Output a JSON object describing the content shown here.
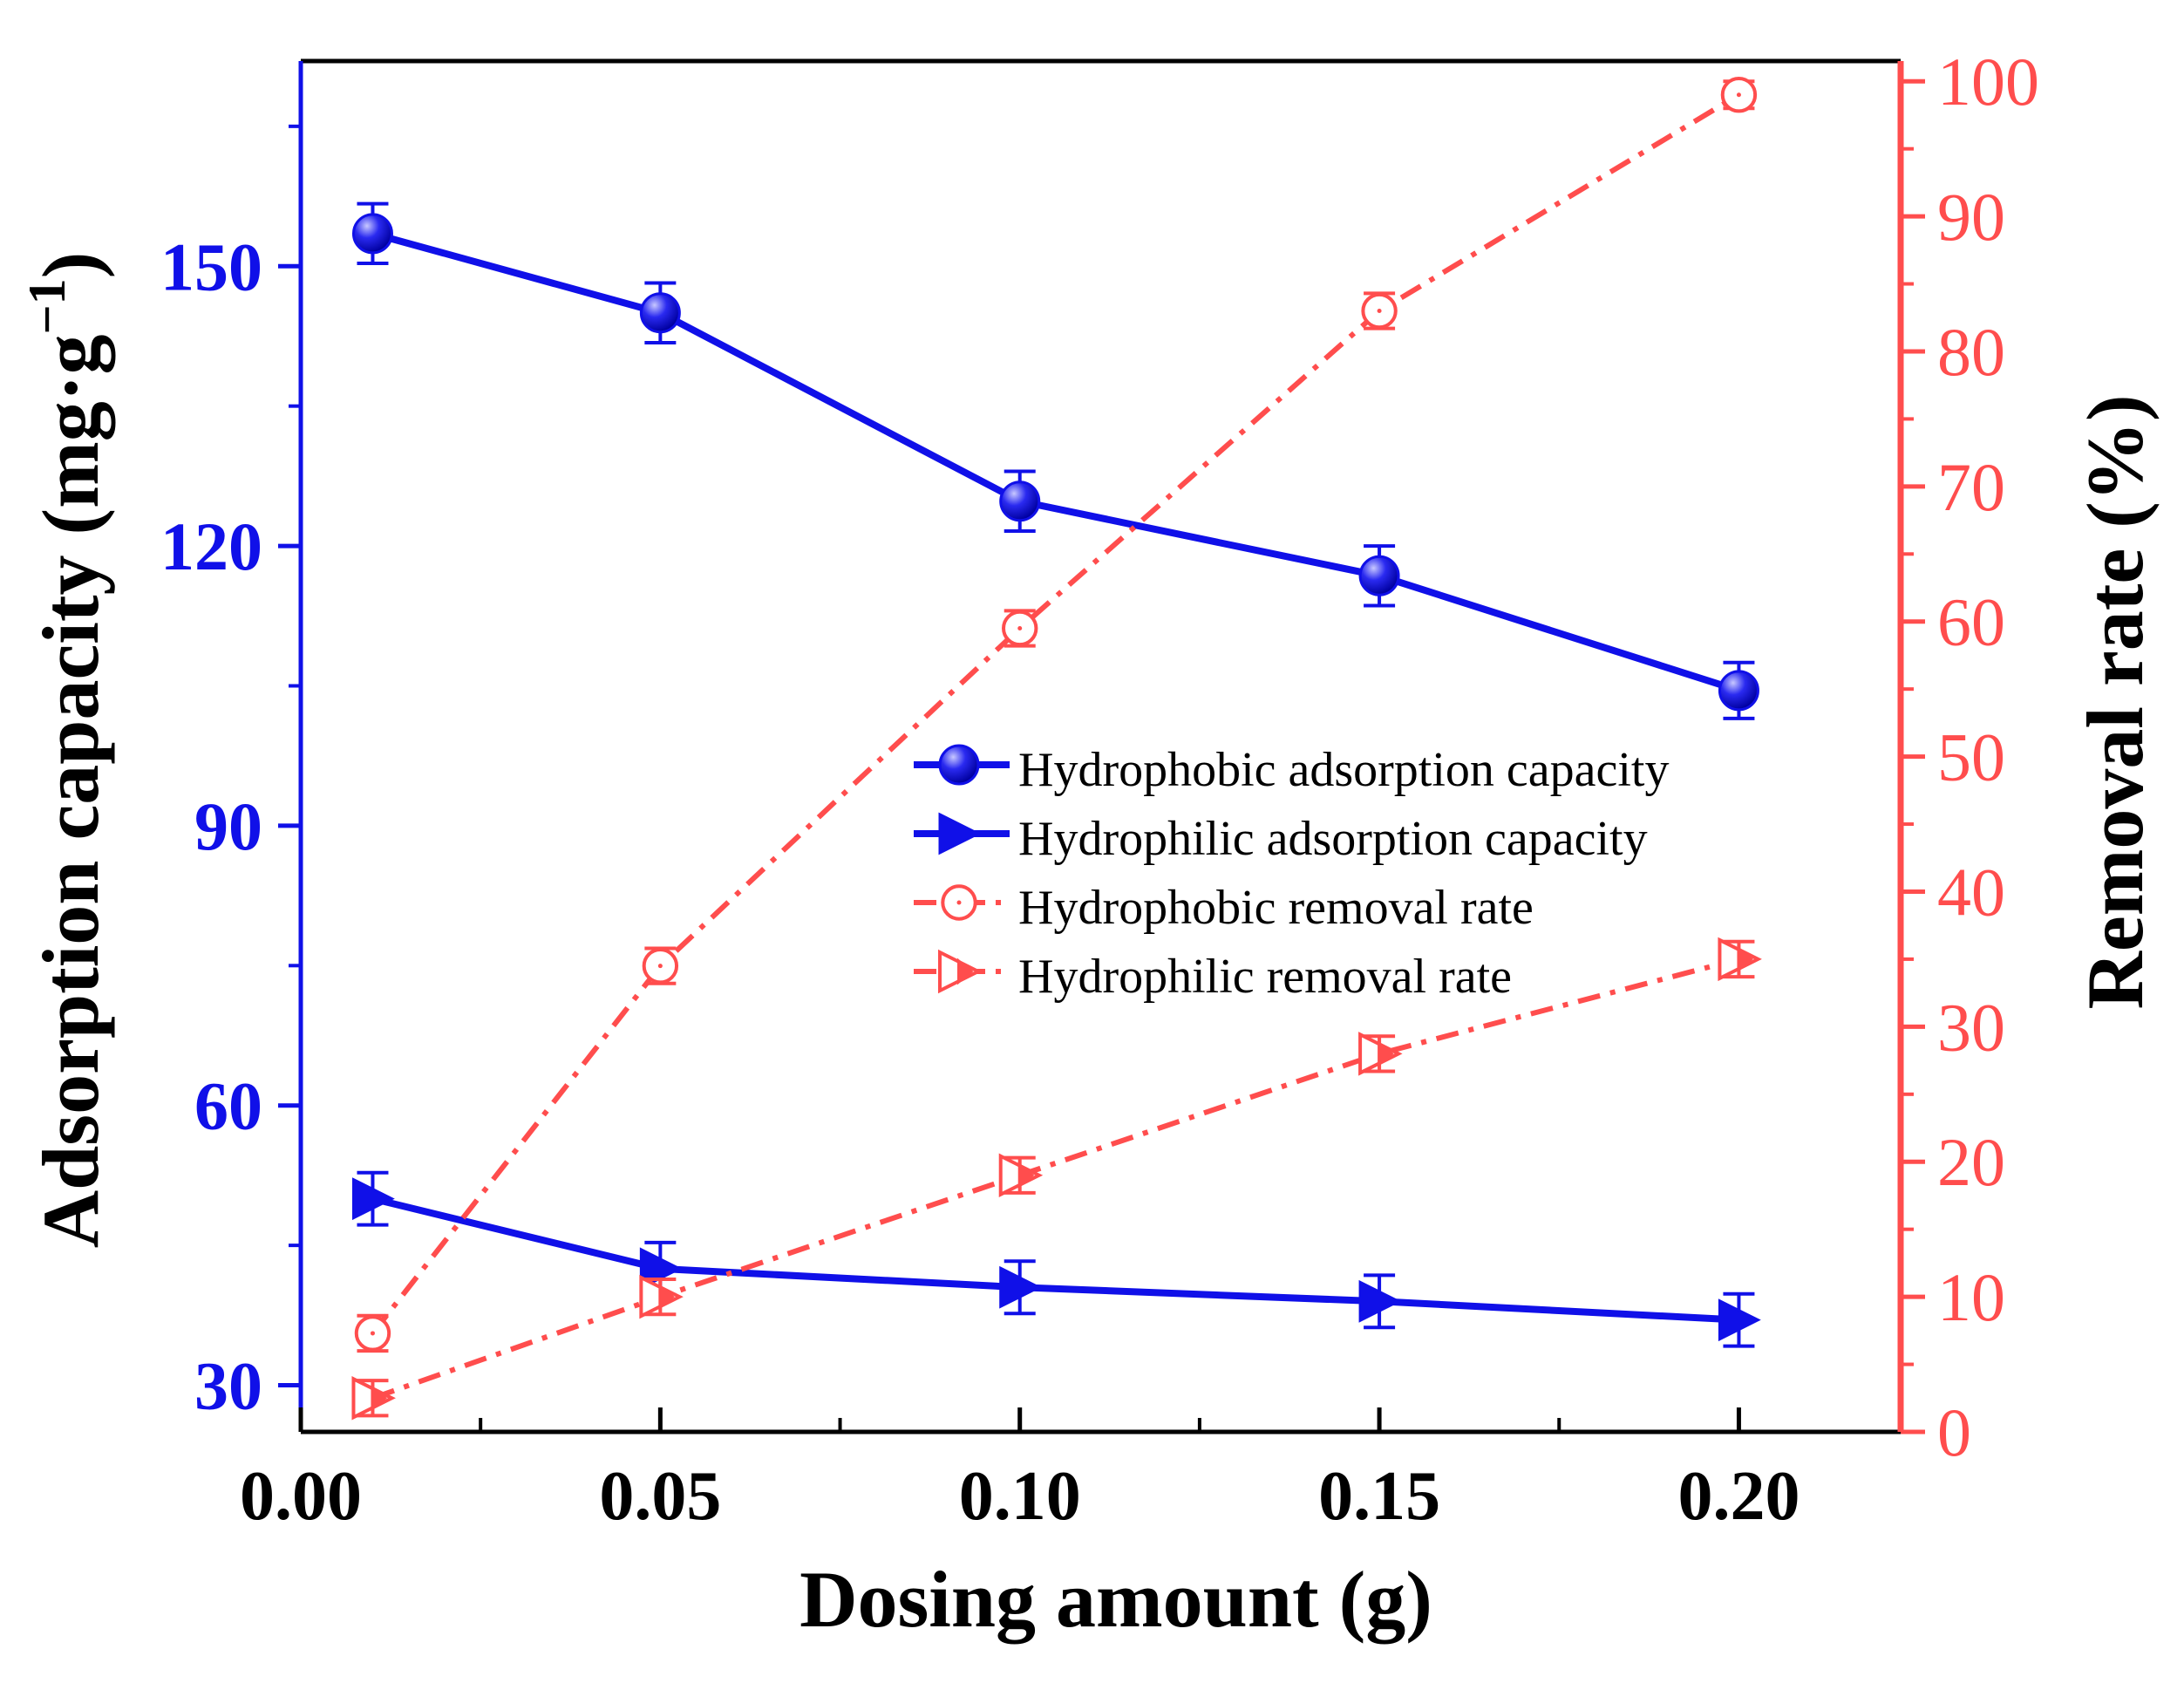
{
  "chart_data": {
    "type": "line",
    "xlabel": "Dosing amount (g)",
    "ylabel_left": "Adsorption capacity (mg·g",
    "ylabel_left_sup": "−1",
    "ylabel_left_close": ")",
    "ylabel_right": "Removal rate (%)",
    "xlim": [
      0.0,
      0.2225
    ],
    "ylim_left": [
      25,
      172
    ],
    "ylim_right": [
      0,
      101.5
    ],
    "x_ticks": [
      0.0,
      0.05,
      0.1,
      0.15,
      0.2
    ],
    "x_tick_labels": [
      "0.00",
      "0.05",
      "0.10",
      "0.15",
      "0.20"
    ],
    "x_minor_ticks": [
      0.025,
      0.075,
      0.125,
      0.175
    ],
    "y_left_ticks": [
      30,
      60,
      90,
      120,
      150
    ],
    "y_left_tick_labels": [
      "30",
      "60",
      "90",
      "120",
      "150"
    ],
    "y_left_minor_ticks": [
      45,
      75,
      105,
      135,
      165
    ],
    "y_right_ticks": [
      0,
      10,
      20,
      30,
      40,
      50,
      60,
      70,
      80,
      90,
      100
    ],
    "y_right_tick_labels": [
      "0",
      "10",
      "20",
      "30",
      "40",
      "50",
      "60",
      "70",
      "80",
      "90",
      "100"
    ],
    "y_right_minor_ticks": [
      5,
      15,
      25,
      35,
      45,
      55,
      65,
      75,
      85,
      95
    ],
    "x": [
      0.01,
      0.05,
      0.1,
      0.15,
      0.2
    ],
    "series": [
      {
        "name": "Hydrophobic adsorption capacity",
        "axis": "left",
        "values": [
          153.5,
          145.0,
          124.8,
          116.8,
          104.5
        ],
        "errors": [
          3.2,
          3.2,
          3.2,
          3.2,
          3.0
        ],
        "color": "#1010e8",
        "line": "solid",
        "marker": "sphere"
      },
      {
        "name": "Hydrophilic adsorption capacity",
        "axis": "left",
        "values": [
          50.0,
          42.5,
          40.5,
          39.0,
          37.0
        ],
        "errors": [
          2.8,
          2.8,
          2.8,
          2.8,
          2.8
        ],
        "color": "#1010e8",
        "line": "solid",
        "marker": "triangle-right"
      },
      {
        "name": "Hydrophobic removal rate",
        "axis": "right",
        "values": [
          7.3,
          34.5,
          59.5,
          83.0,
          99.0
        ],
        "errors": [
          1.3,
          1.3,
          1.3,
          1.3,
          1.0
        ],
        "color": "#ff4d4d",
        "line": "dashdot",
        "marker": "circle-open"
      },
      {
        "name": "Hydrophilic removal rate",
        "axis": "right",
        "values": [
          2.5,
          10.0,
          19.0,
          28.0,
          35.0
        ],
        "errors": [
          1.3,
          1.3,
          1.3,
          1.3,
          1.3
        ],
        "color": "#ff4d4d",
        "line": "dashdot",
        "marker": "triangle-right-open"
      }
    ],
    "legend_position": "center-right",
    "grid": false
  }
}
